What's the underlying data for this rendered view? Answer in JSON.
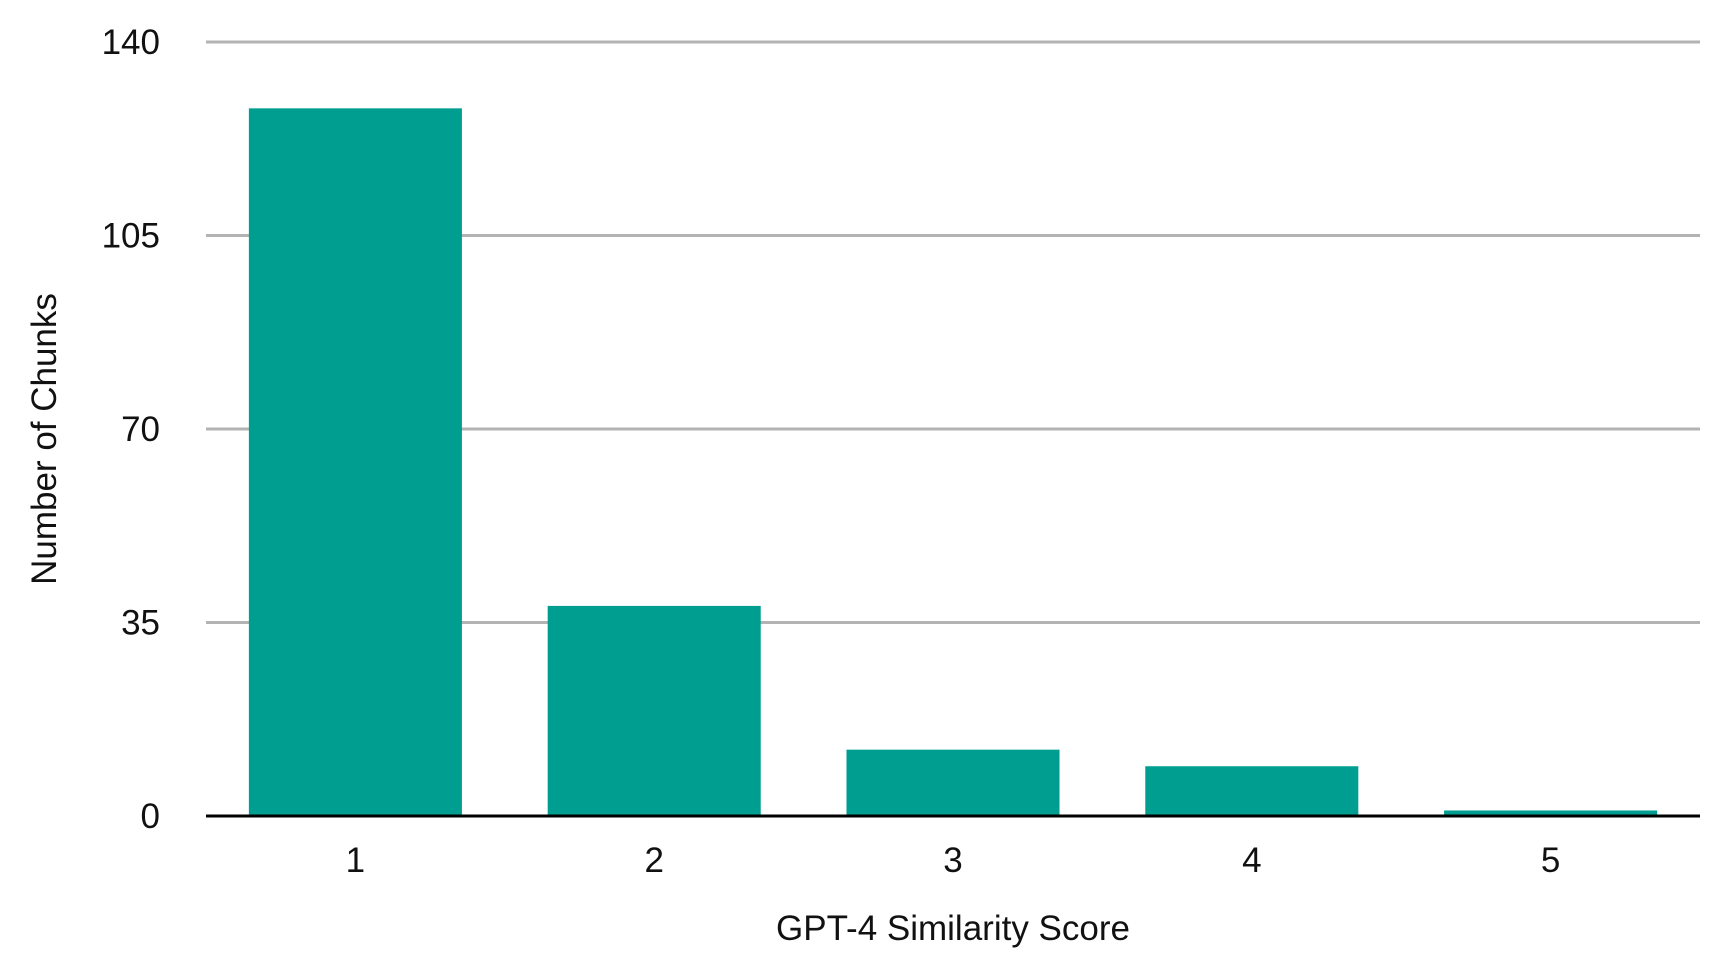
{
  "chart_data": {
    "type": "bar",
    "title": "",
    "xlabel": "GPT-4 Similarity Score",
    "ylabel": "Number of Chunks",
    "categories": [
      "1",
      "2",
      "3",
      "4",
      "5"
    ],
    "values": [
      128,
      38,
      12,
      9,
      1
    ],
    "ylim": [
      0,
      140
    ],
    "yticks": [
      0,
      35,
      70,
      105,
      140
    ],
    "grid": true,
    "legend": "none",
    "colors": {
      "bar": "#009E91",
      "grid": "#B3B3B3",
      "baseline": "#000000",
      "text": "#111111"
    }
  }
}
